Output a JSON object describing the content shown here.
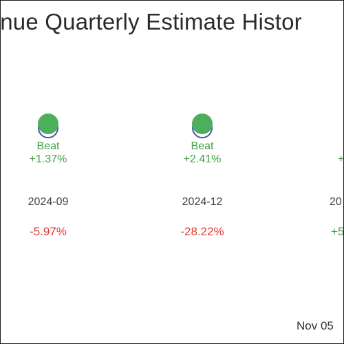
{
  "chart_data": {
    "type": "scatter",
    "title": "venue Quarterly Estimate Histor",
    "periods": [
      {
        "period": "2024-09",
        "result": "Beat",
        "surprise": "+1.37%",
        "change": "-5.97%"
      },
      {
        "period": "2024-12",
        "result": "Beat",
        "surprise": "+2.41%",
        "change": "-28.22%"
      },
      {
        "period": "20",
        "result": "",
        "surprise": "+",
        "change": "+5"
      }
    ],
    "footer_date": "Nov 05",
    "colors": {
      "beat": "#4caf5c",
      "estimate_ring": "#4a55a8",
      "negative": "#e53935",
      "positive": "#43a047"
    }
  }
}
